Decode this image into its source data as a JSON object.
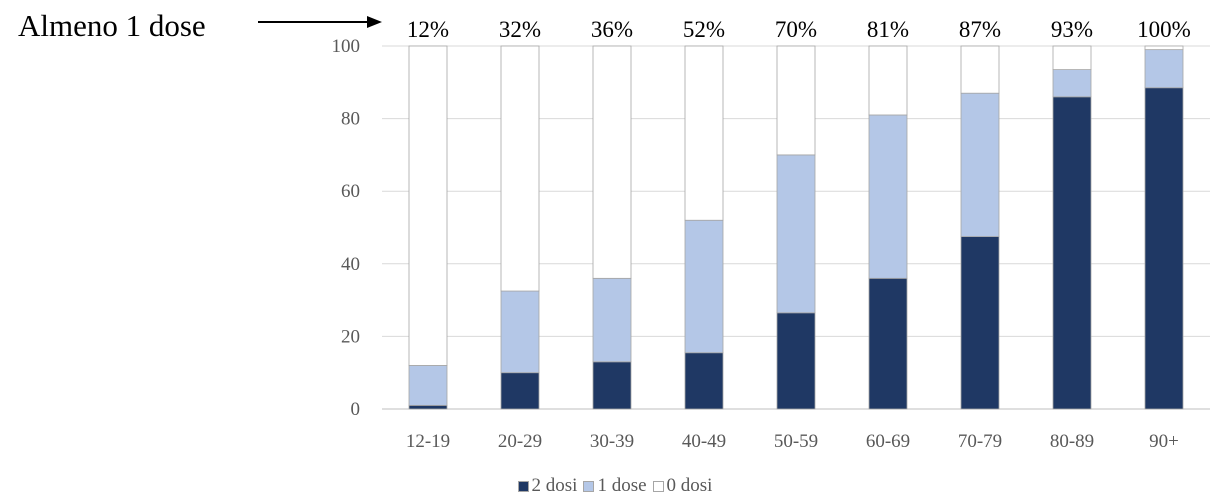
{
  "annotation": "Almeno 1 dose",
  "chart_data": {
    "type": "bar",
    "stacked": true,
    "categories": [
      "12-19",
      "20-29",
      "30-39",
      "40-49",
      "50-59",
      "60-69",
      "70-79",
      "80-89",
      "90+"
    ],
    "series": [
      {
        "name": "2 dosi",
        "color": "#1f3864",
        "values": [
          1,
          10,
          13,
          15.5,
          26.5,
          36,
          47.5,
          86,
          88.5
        ]
      },
      {
        "name": "1 dose",
        "color": "#b4c7e7",
        "values": [
          11,
          22.5,
          23,
          36.5,
          43.5,
          45,
          39.5,
          7.5,
          10.5
        ]
      },
      {
        "name": "0 dosi",
        "color": "#ffffff",
        "values": [
          88,
          67.5,
          64,
          48,
          30,
          19,
          13,
          6.5,
          1
        ]
      }
    ],
    "top_labels": [
      "12%",
      "32%",
      "36%",
      "52%",
      "70%",
      "81%",
      "87%",
      "93%",
      "100%"
    ],
    "ylim": [
      0,
      100
    ],
    "yticks": [
      0,
      20,
      40,
      60,
      80,
      100
    ],
    "grid": true,
    "legend_position": "bottom"
  }
}
